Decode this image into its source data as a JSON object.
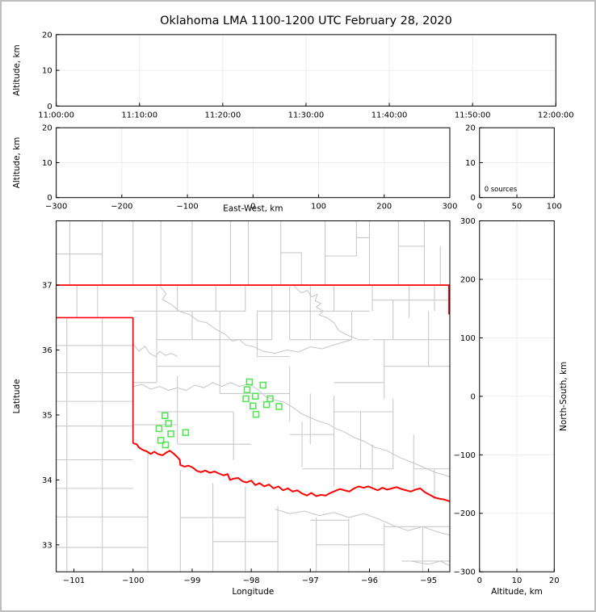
{
  "title": "Oklahoma LMA 1100-1200 UTC February 28, 2020",
  "colors": {
    "frame": "#000000",
    "grid": "#ececec",
    "county": "#c9c9c9",
    "state_border": "#ff0000",
    "source": "#57e557",
    "window_border": "#bdbdbd",
    "text": "#000000"
  },
  "chart_data": [
    {
      "id": "time_height",
      "type": "scatter",
      "xlabel": "",
      "ylabel": "Altitude, km",
      "xtick_labels": [
        "11:00:00",
        "11:10:00",
        "11:20:00",
        "11:30:00",
        "11:40:00",
        "11:50:00",
        "12:00:00"
      ],
      "ylim": [
        0,
        20
      ],
      "ytick_pos": [
        0,
        10,
        20
      ],
      "ytick_labels": [
        "0",
        "10",
        "20"
      ],
      "grid": true,
      "points": []
    },
    {
      "id": "ew_height",
      "type": "scatter",
      "xlabel": "East-West, km",
      "ylabel": "Altitude, km",
      "xlim": [
        -300,
        300
      ],
      "xtick_pos": [
        -300,
        -200,
        -100,
        0,
        100,
        200,
        300
      ],
      "xtick_labels": [
        "−300",
        "−200",
        "−100",
        "0",
        "100",
        "200",
        "300"
      ],
      "ylim": [
        0,
        20
      ],
      "ytick_pos": [
        0,
        10,
        20
      ],
      "ytick_labels": [
        "0",
        "10",
        "20"
      ],
      "grid": true,
      "points": []
    },
    {
      "id": "alt_histogram",
      "type": "histogram",
      "annotation": "0 sources",
      "xlim": [
        0,
        100
      ],
      "xtick_pos": [
        0,
        50,
        100
      ],
      "xtick_labels": [
        "0",
        "50",
        "100"
      ],
      "ylim": [
        0,
        20
      ],
      "ytick_pos": [
        0,
        10,
        20
      ],
      "ytick_labels": [
        "0",
        "10",
        "20"
      ],
      "grid": true,
      "points": []
    },
    {
      "id": "plan_view",
      "type": "scatter",
      "xlabel": "Longitude",
      "ylabel": "Latitude",
      "xlim": [
        -101.3,
        -94.64
      ],
      "xtick_pos": [
        -101,
        -100,
        -99,
        -98,
        -97,
        -96,
        -95
      ],
      "xtick_labels": [
        "−101",
        "−100",
        "−99",
        "−98",
        "−97",
        "−96",
        "−95"
      ],
      "ylim": [
        32.585,
        37.99
      ],
      "ytick_pos": [
        33,
        34,
        35,
        36,
        37
      ],
      "ytick_labels": [
        "33",
        "34",
        "35",
        "36",
        "37"
      ],
      "grid": false,
      "points": [
        [
          -98.03,
          35.51
        ],
        [
          -97.8,
          35.46
        ],
        [
          -98.07,
          35.39
        ],
        [
          -97.93,
          35.29
        ],
        [
          -98.09,
          35.25
        ],
        [
          -97.68,
          35.25
        ],
        [
          -97.74,
          35.16
        ],
        [
          -97.97,
          35.14
        ],
        [
          -97.53,
          35.13
        ],
        [
          -97.92,
          35.01
        ],
        [
          -99.46,
          34.99
        ],
        [
          -99.4,
          34.87
        ],
        [
          -99.56,
          34.79
        ],
        [
          -99.36,
          34.71
        ],
        [
          -99.11,
          34.73
        ],
        [
          -99.53,
          34.61
        ],
        [
          -99.45,
          34.54
        ]
      ]
    },
    {
      "id": "ns_height",
      "type": "scatter",
      "xlabel": "Altitude, km",
      "ylabel": "North-South, km",
      "ylabel_side": "right",
      "xlim": [
        0,
        20
      ],
      "xtick_pos": [
        0,
        10,
        20
      ],
      "xtick_labels": [
        "0",
        "10",
        "20"
      ],
      "ylim": [
        -300,
        300
      ],
      "ytick_pos": [
        300,
        200,
        100,
        0,
        -100,
        -200,
        -300
      ],
      "ytick_labels": [
        "300",
        "200",
        "100",
        "0",
        "−100",
        "−200",
        "−300"
      ],
      "grid": true,
      "points": []
    }
  ],
  "map": {
    "county_v": [
      [
        -101.07,
        37,
        37.99
      ],
      [
        -100.52,
        37,
        37.99
      ],
      [
        -100.0,
        37,
        37.99
      ],
      [
        -99.53,
        37,
        37.99
      ],
      [
        -99.0,
        37,
        37.99
      ],
      [
        -98.35,
        37,
        37.99
      ],
      [
        -98.05,
        37,
        37.99
      ],
      [
        -97.5,
        37,
        37.99
      ],
      [
        -97.15,
        37,
        37.5
      ],
      [
        -96.75,
        37,
        37.99
      ],
      [
        -96.22,
        37.45,
        37.99
      ],
      [
        -96.0,
        37,
        37.99
      ],
      [
        -95.51,
        37,
        37.99
      ],
      [
        -95.07,
        37,
        37.99
      ],
      [
        -94.8,
        37,
        37.6
      ],
      [
        -100.95,
        36.5,
        37
      ],
      [
        -100.6,
        36.5,
        37
      ],
      [
        -101.12,
        32.585,
        36.5
      ],
      [
        -100.52,
        32.585,
        36.5
      ],
      [
        -99.6,
        35.5,
        37
      ],
      [
        -99.25,
        36.6,
        37
      ],
      [
        -99.25,
        34.56,
        35.6
      ],
      [
        -99.0,
        36.16,
        36.6
      ],
      [
        -98.6,
        36.6,
        37
      ],
      [
        -98.53,
        35.33,
        36.6
      ],
      [
        -98.3,
        34.3,
        35.05
      ],
      [
        -98.1,
        36.6,
        37
      ],
      [
        -97.9,
        35.9,
        36.6
      ],
      [
        -97.65,
        36.16,
        37
      ],
      [
        -97.35,
        36.16,
        37
      ],
      [
        -97.35,
        34.9,
        35.75
      ],
      [
        -97.14,
        34.2,
        34.9
      ],
      [
        -97.0,
        36.16,
        37
      ],
      [
        -97.0,
        34.55,
        35.33
      ],
      [
        -96.6,
        36.6,
        37
      ],
      [
        -96.6,
        33.9,
        35.3
      ],
      [
        -96.3,
        36.16,
        36.6
      ],
      [
        -96.15,
        34.17,
        35.05
      ],
      [
        -95.95,
        36.6,
        37
      ],
      [
        -95.95,
        33.85,
        34.55
      ],
      [
        -95.75,
        35.25,
        36.16
      ],
      [
        -95.6,
        36.16,
        36.77
      ],
      [
        -95.6,
        34.17,
        35.25
      ],
      [
        -95.33,
        36.5,
        37
      ],
      [
        -95.25,
        33.85,
        34.7
      ],
      [
        -95.0,
        35.75,
        36.6
      ],
      [
        -94.9,
        36.6,
        37
      ],
      [
        -94.9,
        33.7,
        34.17
      ],
      [
        -99.75,
        32.585,
        34.45
      ],
      [
        -99.2,
        32.585,
        34.15
      ],
      [
        -98.65,
        32.585,
        33.95
      ],
      [
        -98.1,
        32.585,
        33.9
      ],
      [
        -97.55,
        32.585,
        33.6
      ],
      [
        -96.9,
        32.585,
        33.42
      ],
      [
        -96.35,
        32.585,
        33.4
      ],
      [
        -95.75,
        32.585,
        33.33
      ],
      [
        -95.1,
        32.585,
        33.28
      ]
    ],
    "county_h": [
      [
        37.48,
        -101.3,
        -100.52
      ],
      [
        37.5,
        -97.5,
        -97.15
      ],
      [
        37.45,
        -96.75,
        -96.22
      ],
      [
        37.73,
        -96.22,
        -96.0
      ],
      [
        37.6,
        -95.51,
        -95.07
      ],
      [
        36.07,
        -101.3,
        -100.0
      ],
      [
        35.65,
        -101.3,
        -100.0
      ],
      [
        35.21,
        -101.3,
        -100.0
      ],
      [
        34.83,
        -101.3,
        -100.0
      ],
      [
        34.31,
        -101.3,
        -100.0
      ],
      [
        33.87,
        -101.3,
        -100.0
      ],
      [
        33.43,
        -101.3,
        -99.75
      ],
      [
        32.96,
        -101.3,
        -99.75
      ],
      [
        36.6,
        -100.0,
        -98.1
      ],
      [
        36.6,
        -97.9,
        -96.0
      ],
      [
        36.77,
        -95.95,
        -94.64
      ],
      [
        36.16,
        -99.6,
        -97.65
      ],
      [
        36.16,
        -97.35,
        -96.3
      ],
      [
        36.16,
        -95.95,
        -94.64
      ],
      [
        35.9,
        -97.9,
        -97.35
      ],
      [
        35.75,
        -99.6,
        -98.53
      ],
      [
        35.75,
        -95.75,
        -94.64
      ],
      [
        35.5,
        -100.0,
        -99.6
      ],
      [
        35.5,
        -96.6,
        -95.75
      ],
      [
        35.33,
        -98.53,
        -97.35
      ],
      [
        35.05,
        -99.6,
        -98.3
      ],
      [
        35.05,
        -96.6,
        -95.6
      ],
      [
        34.85,
        -100.0,
        -99.25
      ],
      [
        34.55,
        -99.25,
        -98.0
      ],
      [
        34.7,
        -97.35,
        -96.6
      ],
      [
        34.17,
        -97.14,
        -95.6
      ],
      [
        34.17,
        -95.25,
        -94.64
      ],
      [
        33.42,
        -99.2,
        -98.1
      ],
      [
        33.05,
        -98.65,
        -97.55
      ],
      [
        33.38,
        -97.0,
        -96.35
      ],
      [
        33.0,
        -96.9,
        -95.75
      ],
      [
        33.28,
        -95.75,
        -94.64
      ],
      [
        32.75,
        -95.45,
        -94.64
      ]
    ],
    "rivers": [
      [
        [
          -97.28,
          36.99
        ],
        [
          -97.15,
          36.88
        ],
        [
          -97.05,
          36.92
        ],
        [
          -96.98,
          36.82
        ],
        [
          -96.88,
          36.86
        ],
        [
          -96.92,
          36.76
        ],
        [
          -96.82,
          36.72
        ],
        [
          -96.9,
          36.66
        ],
        [
          -96.78,
          36.6
        ],
        [
          -96.85,
          36.54
        ],
        [
          -96.72,
          36.5
        ],
        [
          -96.6,
          36.42
        ],
        [
          -96.52,
          36.3
        ],
        [
          -96.35,
          36.22
        ],
        [
          -96.18,
          36.16
        ],
        [
          -96.0,
          36.16
        ]
      ],
      [
        [
          -99.55,
          36.99
        ],
        [
          -99.44,
          36.87
        ],
        [
          -99.5,
          36.78
        ],
        [
          -99.35,
          36.7
        ],
        [
          -99.22,
          36.6
        ],
        [
          -99.05,
          36.55
        ],
        [
          -98.9,
          36.45
        ],
        [
          -98.75,
          36.42
        ],
        [
          -98.6,
          36.32
        ],
        [
          -98.45,
          36.25
        ],
        [
          -98.32,
          36.14
        ],
        [
          -98.2,
          36.16
        ],
        [
          -98.1,
          36.08
        ],
        [
          -97.95,
          36.05
        ],
        [
          -97.8,
          35.98
        ],
        [
          -97.6,
          35.95
        ],
        [
          -97.4,
          36.0
        ],
        [
          -97.2,
          35.97
        ],
        [
          -97.0,
          36.05
        ],
        [
          -96.8,
          36.02
        ],
        [
          -96.6,
          36.08
        ],
        [
          -96.45,
          36.12
        ],
        [
          -96.3,
          36.16
        ]
      ],
      [
        [
          -100.0,
          36.1
        ],
        [
          -99.9,
          35.98
        ],
        [
          -99.8,
          36.06
        ],
        [
          -99.72,
          35.95
        ],
        [
          -99.62,
          35.9
        ],
        [
          -99.55,
          35.98
        ],
        [
          -99.45,
          35.92
        ],
        [
          -99.35,
          35.95
        ],
        [
          -99.25,
          35.9
        ]
      ],
      [
        [
          -100.0,
          35.44
        ],
        [
          -99.85,
          35.47
        ],
        [
          -99.7,
          35.4
        ],
        [
          -99.55,
          35.44
        ],
        [
          -99.4,
          35.38
        ],
        [
          -99.25,
          35.42
        ],
        [
          -99.1,
          35.38
        ],
        [
          -98.95,
          35.46
        ],
        [
          -98.8,
          35.42
        ],
        [
          -98.65,
          35.5
        ],
        [
          -98.5,
          35.44
        ],
        [
          -98.35,
          35.5
        ],
        [
          -98.2,
          35.44
        ],
        [
          -98.05,
          35.48
        ],
        [
          -97.9,
          35.4
        ],
        [
          -97.75,
          35.28
        ],
        [
          -97.6,
          35.23
        ],
        [
          -97.45,
          35.2
        ],
        [
          -97.3,
          35.12
        ],
        [
          -97.15,
          35.02
        ],
        [
          -97.0,
          34.96
        ],
        [
          -96.85,
          34.9
        ],
        [
          -96.7,
          34.86
        ],
        [
          -96.55,
          34.78
        ],
        [
          -96.4,
          34.73
        ],
        [
          -96.25,
          34.65
        ],
        [
          -96.1,
          34.6
        ],
        [
          -95.9,
          34.5
        ],
        [
          -95.7,
          34.45
        ],
        [
          -95.5,
          34.35
        ],
        [
          -95.3,
          34.28
        ],
        [
          -95.1,
          34.2
        ],
        [
          -94.9,
          34.12
        ],
        [
          -94.75,
          34.08
        ],
        [
          -94.64,
          34.05
        ]
      ],
      [
        [
          -97.6,
          33.55
        ],
        [
          -97.35,
          33.48
        ],
        [
          -97.1,
          33.52
        ],
        [
          -96.85,
          33.45
        ],
        [
          -96.6,
          33.5
        ],
        [
          -96.35,
          33.42
        ],
        [
          -96.1,
          33.48
        ],
        [
          -95.85,
          33.4
        ],
        [
          -95.6,
          33.3
        ],
        [
          -95.35,
          33.22
        ],
        [
          -95.1,
          33.28
        ],
        [
          -94.85,
          33.2
        ],
        [
          -94.64,
          33.15
        ]
      ],
      [
        [
          -95.3,
          32.75
        ],
        [
          -95.0,
          32.7
        ],
        [
          -94.8,
          32.75
        ],
        [
          -94.64,
          32.68
        ]
      ]
    ],
    "state_border_lines": [
      [
        [
          -101.3,
          37
        ],
        [
          -94.64,
          37
        ]
      ],
      [
        [
          -101.3,
          36.5
        ],
        [
          -100.0,
          36.5
        ]
      ],
      [
        [
          -100.0,
          36.5
        ],
        [
          -100.0,
          34.565
        ]
      ],
      [
        [
          -94.655,
          37
        ],
        [
          -94.655,
          36.55
        ]
      ]
    ],
    "red_river": [
      [
        -100.0,
        34.565
      ],
      [
        -99.94,
        34.55
      ],
      [
        -99.9,
        34.5
      ],
      [
        -99.84,
        34.465
      ],
      [
        -99.77,
        34.44
      ],
      [
        -99.7,
        34.4
      ],
      [
        -99.64,
        34.435
      ],
      [
        -99.58,
        34.4
      ],
      [
        -99.5,
        34.38
      ],
      [
        -99.44,
        34.42
      ],
      [
        -99.38,
        34.45
      ],
      [
        -99.32,
        34.41
      ],
      [
        -99.26,
        34.36
      ],
      [
        -99.21,
        34.31
      ],
      [
        -99.2,
        34.23
      ],
      [
        -99.13,
        34.205
      ],
      [
        -99.06,
        34.22
      ],
      [
        -98.99,
        34.19
      ],
      [
        -98.92,
        34.14
      ],
      [
        -98.85,
        34.12
      ],
      [
        -98.78,
        34.145
      ],
      [
        -98.7,
        34.11
      ],
      [
        -98.62,
        34.13
      ],
      [
        -98.55,
        34.1
      ],
      [
        -98.47,
        34.07
      ],
      [
        -98.4,
        34.09
      ],
      [
        -98.36,
        34.0
      ],
      [
        -98.3,
        34.02
      ],
      [
        -98.22,
        34.03
      ],
      [
        -98.15,
        33.98
      ],
      [
        -98.08,
        33.96
      ],
      [
        -98.0,
        33.99
      ],
      [
        -97.93,
        33.92
      ],
      [
        -97.86,
        33.95
      ],
      [
        -97.78,
        33.9
      ],
      [
        -97.7,
        33.93
      ],
      [
        -97.62,
        33.87
      ],
      [
        -97.54,
        33.9
      ],
      [
        -97.46,
        33.84
      ],
      [
        -97.38,
        33.87
      ],
      [
        -97.3,
        33.82
      ],
      [
        -97.22,
        33.84
      ],
      [
        -97.14,
        33.79
      ],
      [
        -97.06,
        33.76
      ],
      [
        -96.98,
        33.8
      ],
      [
        -96.9,
        33.75
      ],
      [
        -96.82,
        33.77
      ],
      [
        -96.74,
        33.76
      ],
      [
        -96.66,
        33.8
      ],
      [
        -96.58,
        33.83
      ],
      [
        -96.5,
        33.86
      ],
      [
        -96.42,
        33.84
      ],
      [
        -96.34,
        33.82
      ],
      [
        -96.26,
        33.87
      ],
      [
        -96.18,
        33.9
      ],
      [
        -96.1,
        33.88
      ],
      [
        -96.02,
        33.9
      ],
      [
        -95.94,
        33.87
      ],
      [
        -95.86,
        33.84
      ],
      [
        -95.78,
        33.88
      ],
      [
        -95.7,
        33.85
      ],
      [
        -95.62,
        33.87
      ],
      [
        -95.54,
        33.89
      ],
      [
        -95.46,
        33.86
      ],
      [
        -95.38,
        33.84
      ],
      [
        -95.3,
        33.82
      ],
      [
        -95.22,
        33.85
      ],
      [
        -95.14,
        33.87
      ],
      [
        -95.06,
        33.81
      ],
      [
        -94.98,
        33.77
      ],
      [
        -94.9,
        33.73
      ],
      [
        -94.82,
        33.71
      ],
      [
        -94.74,
        33.7
      ],
      [
        -94.64,
        33.67
      ]
    ]
  }
}
